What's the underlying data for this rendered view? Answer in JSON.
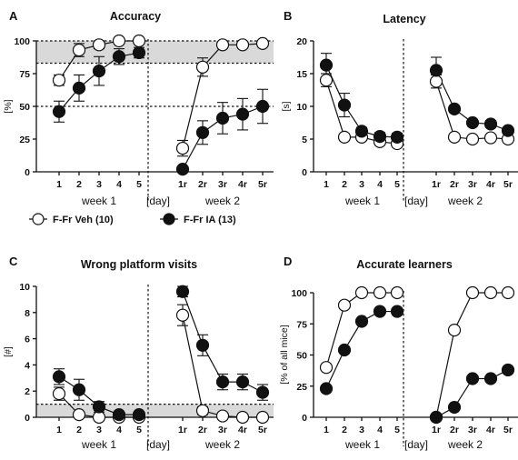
{
  "legend": {
    "veh": {
      "label": "F-Fr Veh (10)",
      "marker": "open-circle"
    },
    "ia": {
      "label": "F-Fr IA (13)",
      "marker": "filled-circle"
    }
  },
  "colors": {
    "ink": "#111111",
    "band": "#d9d9d9",
    "open_fill": "#ffffff",
    "filled_fill": "#111111"
  },
  "chart_data": [
    {
      "letter": "A",
      "type": "line",
      "title": "Accuracy",
      "ylabel": "[%]",
      "ylim": [
        0,
        100
      ],
      "yticks": [
        "0",
        "25",
        "50",
        "75",
        "100"
      ],
      "categories": [
        "1",
        "2",
        "3",
        "4",
        "5",
        "[day]",
        "1r",
        "2r",
        "3r",
        "4r",
        "5r"
      ],
      "week_labels": [
        "week 1",
        "week 2"
      ],
      "shaded_band": [
        83,
        100
      ],
      "hlines": [
        100,
        83,
        50
      ],
      "series": [
        {
          "name": "F-Fr Veh (10)",
          "marker": "open",
          "segments": [
            [
              70,
              93,
              97,
              100,
              100
            ],
            [
              18,
              80,
              97,
              97,
              98
            ]
          ],
          "errors": [
            [
              4,
              5,
              3,
              1,
              1
            ],
            [
              6,
              7,
              2,
              2,
              1
            ]
          ]
        },
        {
          "name": "F-Fr IA (13)",
          "marker": "filled",
          "segments": [
            [
              46,
              64,
              77,
              88,
              91
            ],
            [
              2,
              30,
              41,
              44,
              50
            ]
          ],
          "errors": [
            [
              8,
              10,
              11,
              6,
              4
            ],
            [
              2,
              9,
              12,
              12,
              13
            ]
          ]
        }
      ]
    },
    {
      "letter": "B",
      "type": "line",
      "title": "Latency",
      "ylabel": "[s]",
      "ylim": [
        0,
        20
      ],
      "yticks": [
        "0",
        "5",
        "10",
        "15",
        "20"
      ],
      "categories": [
        "1",
        "2",
        "3",
        "4",
        "5",
        "[day]",
        "1r",
        "2r",
        "3r",
        "4r",
        "5r"
      ],
      "week_labels": [
        "week 1",
        "week 2"
      ],
      "series": [
        {
          "name": "F-Fr Veh (10)",
          "marker": "open",
          "segments": [
            [
              14,
              5.3,
              5.3,
              4.6,
              4.3
            ],
            [
              13.8,
              5.3,
              5,
              5.2,
              5
            ]
          ],
          "errors": [
            [
              1,
              0.5,
              0.5,
              0.4,
              0.4
            ],
            [
              1,
              0.4,
              0.3,
              0.3,
              0.3
            ]
          ]
        },
        {
          "name": "F-Fr IA (13)",
          "marker": "filled",
          "segments": [
            [
              16.3,
              10.2,
              6.2,
              5.4,
              5.3
            ],
            [
              15.5,
              9.6,
              7.5,
              7.3,
              6.3
            ]
          ],
          "errors": [
            [
              1.8,
              1.8,
              0.6,
              0.6,
              0.6
            ],
            [
              2,
              0.5,
              0.5,
              0.5,
              0.5
            ]
          ]
        }
      ]
    },
    {
      "letter": "C",
      "type": "line",
      "title": "Wrong platform visits",
      "ylabel": "[#]",
      "ylim": [
        0,
        10
      ],
      "yticks": [
        "0",
        "2",
        "4",
        "6",
        "8",
        "10"
      ],
      "categories": [
        "1",
        "2",
        "3",
        "4",
        "5",
        "[day]",
        "1r",
        "2r",
        "3r",
        "4r",
        "5r"
      ],
      "week_labels": [
        "week 1",
        "week 2"
      ],
      "shaded_band": [
        0,
        1
      ],
      "hlines": [
        1
      ],
      "series": [
        {
          "name": "F-Fr Veh (10)",
          "marker": "open",
          "segments": [
            [
              1.8,
              0.2,
              0,
              0,
              0
            ],
            [
              7.8,
              0.5,
              0.1,
              0,
              0
            ]
          ],
          "errors": [
            [
              0.5,
              0.2,
              0,
              0,
              0
            ],
            [
              0.8,
              0.3,
              0.1,
              0,
              0
            ]
          ]
        },
        {
          "name": "F-Fr IA (13)",
          "marker": "filled",
          "segments": [
            [
              3.1,
              2.1,
              0.8,
              0.2,
              0.2
            ],
            [
              9.6,
              5.5,
              2.7,
              2.7,
              1.9
            ]
          ],
          "errors": [
            [
              0.6,
              0.8,
              0.4,
              0.2,
              0.2
            ],
            [
              0.4,
              0.8,
              0.6,
              0.6,
              0.6
            ]
          ]
        }
      ]
    },
    {
      "letter": "D",
      "type": "line",
      "title": "Accurate learners",
      "ylabel": "[% of all mice]",
      "ylim": [
        0,
        100
      ],
      "yticks": [
        "0",
        "25",
        "50",
        "75",
        "100"
      ],
      "categories": [
        "1",
        "2",
        "3",
        "4",
        "5",
        "[day]",
        "1r",
        "2r",
        "3r",
        "4r",
        "5r"
      ],
      "week_labels": [
        "week 1",
        "week 2"
      ],
      "series": [
        {
          "name": "F-Fr Veh (10)",
          "marker": "open",
          "segments": [
            [
              40,
              90,
              100,
              100,
              100
            ],
            [
              0,
              70,
              100,
              100,
              100
            ]
          ]
        },
        {
          "name": "F-Fr IA (13)",
          "marker": "filled",
          "segments": [
            [
              23,
              54,
              77,
              85,
              85
            ],
            [
              0,
              8,
              31,
              31,
              38
            ]
          ]
        }
      ]
    }
  ]
}
